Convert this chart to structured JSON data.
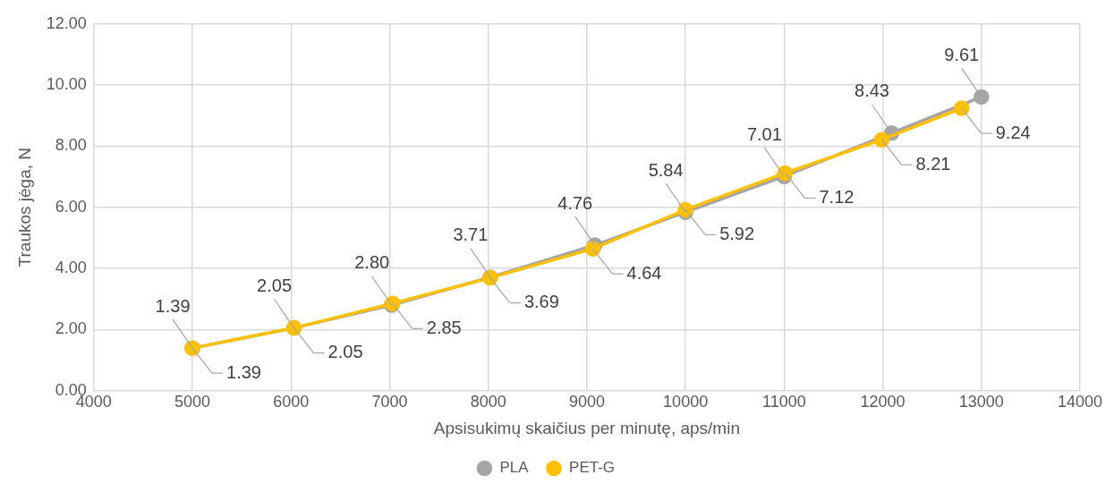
{
  "chart_data": {
    "type": "line",
    "xlabel": "Apsisukimų skaičius per minutę, aps/min",
    "ylabel": "Traukos jėga, N",
    "xlim": [
      4000,
      14000
    ],
    "xticks": [
      4000,
      5000,
      6000,
      7000,
      8000,
      9000,
      10000,
      11000,
      12000,
      13000,
      14000
    ],
    "ylim": [
      0,
      12
    ],
    "yticks": [
      {
        "value": 0,
        "label": "0.00"
      },
      {
        "value": 2,
        "label": "2.00"
      },
      {
        "value": 4,
        "label": "4.00"
      },
      {
        "value": 6,
        "label": "6.00"
      },
      {
        "value": 8,
        "label": "8.00"
      },
      {
        "value": 10,
        "label": "10.00"
      },
      {
        "value": 12,
        "label": "12.00"
      }
    ],
    "grid": true,
    "legend": "bottom",
    "marker": "circle",
    "line_style": "solid",
    "series": [
      {
        "name": "PLA",
        "color": "#a5a5a5",
        "x": [
          5000,
          6030,
          7020,
          8020,
          9080,
          10000,
          11000,
          12090,
          13000
        ],
        "values": [
          1.39,
          2.05,
          2.8,
          3.71,
          4.76,
          5.84,
          7.01,
          8.43,
          9.61
        ],
        "value_labels": [
          "1.39",
          "2.05",
          "2.80",
          "3.71",
          "4.76",
          "5.84",
          "7.01",
          "8.43",
          "9.61"
        ]
      },
      {
        "name": "PET-G",
        "color": "#ffc000",
        "x": [
          5000,
          6030,
          7030,
          8020,
          9060,
          10000,
          11010,
          11990,
          12800
        ],
        "values": [
          1.39,
          2.05,
          2.85,
          3.69,
          4.64,
          5.92,
          7.12,
          8.21,
          9.24
        ],
        "value_labels": [
          "1.39",
          "2.05",
          "2.85",
          "3.69",
          "4.64",
          "5.92",
          "7.12",
          "8.21",
          "9.24"
        ]
      }
    ]
  }
}
